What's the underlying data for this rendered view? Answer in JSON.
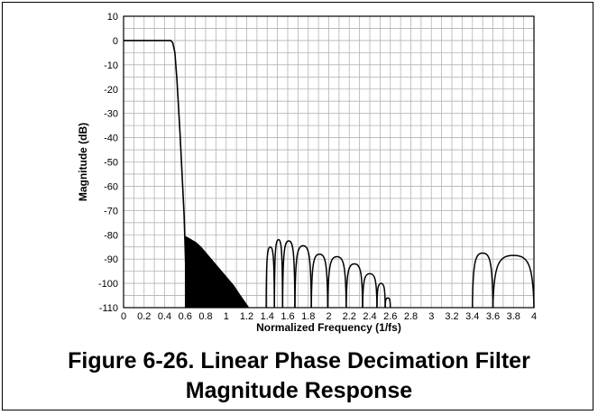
{
  "chart_data": {
    "type": "line",
    "xlabel": "Normalized Frequency (1/fs)",
    "ylabel": "Magnitude (dB)",
    "xlim": [
      0,
      4
    ],
    "ylim": [
      -110,
      10
    ],
    "x_ticks": [
      "0",
      "0.2",
      "0.4",
      "0.6",
      "0.8",
      "1",
      "1.2",
      "1.4",
      "1.6",
      "1.8",
      "2",
      "2.2",
      "2.4",
      "2.6",
      "2.8",
      "3",
      "3.2",
      "3.4",
      "3.6",
      "3.8",
      "4"
    ],
    "y_ticks": [
      "10",
      "0",
      "-10",
      "-20",
      "-30",
      "-40",
      "-50",
      "-60",
      "-70",
      "-80",
      "-90",
      "-100",
      "-110"
    ],
    "grid": true,
    "line_color": "#000000",
    "series": [
      {
        "passband": [
          [
            0,
            0
          ],
          [
            0.46,
            0
          ],
          [
            0.48,
            -1
          ],
          [
            0.5,
            -5
          ],
          [
            0.52,
            -16
          ],
          [
            0.55,
            -38
          ],
          [
            0.57,
            -55
          ],
          [
            0.59,
            -72
          ],
          [
            0.605,
            -92
          ],
          [
            0.61,
            -110
          ]
        ],
        "stopband_lobes": [
          [
            0.605,
            0.613,
            -80.8
          ],
          [
            0.613,
            0.621,
            -81.0
          ],
          [
            0.621,
            0.629,
            -81.2
          ],
          [
            0.629,
            0.637,
            -81.4
          ],
          [
            0.637,
            0.645,
            -81.6
          ],
          [
            0.645,
            0.653,
            -81.8
          ],
          [
            0.653,
            0.661,
            -82.0
          ],
          [
            0.661,
            0.669,
            -82.2
          ],
          [
            0.669,
            0.677,
            -82.4
          ],
          [
            0.677,
            0.685,
            -82.6
          ],
          [
            0.685,
            0.693,
            -82.8
          ],
          [
            0.693,
            0.701,
            -83.0
          ],
          [
            0.701,
            0.709,
            -83.2
          ],
          [
            0.709,
            0.717,
            -83.5
          ],
          [
            0.717,
            0.725,
            -83.8
          ],
          [
            0.725,
            0.733,
            -84.1
          ],
          [
            0.733,
            0.741,
            -84.4
          ],
          [
            0.741,
            0.749,
            -84.7
          ],
          [
            0.749,
            0.757,
            -85.0
          ],
          [
            0.757,
            0.765,
            -85.4
          ],
          [
            0.765,
            0.773,
            -85.8
          ],
          [
            0.773,
            0.781,
            -86.2
          ],
          [
            0.781,
            0.789,
            -86.6
          ],
          [
            0.789,
            0.797,
            -87.0
          ],
          [
            0.797,
            0.805,
            -87.4
          ],
          [
            0.805,
            0.813,
            -87.8
          ],
          [
            0.813,
            0.821,
            -88.2
          ],
          [
            0.821,
            0.829,
            -88.6
          ],
          [
            0.829,
            0.837,
            -89.0
          ],
          [
            0.837,
            0.845,
            -89.4
          ],
          [
            0.845,
            0.853,
            -89.8
          ],
          [
            0.853,
            0.861,
            -90.2
          ],
          [
            0.861,
            0.869,
            -90.6
          ],
          [
            0.869,
            0.877,
            -91.0
          ],
          [
            0.877,
            0.885,
            -91.4
          ],
          [
            0.885,
            0.893,
            -91.8
          ],
          [
            0.893,
            0.901,
            -92.2
          ],
          [
            0.901,
            0.909,
            -92.6
          ],
          [
            0.909,
            0.917,
            -93.0
          ],
          [
            0.917,
            0.925,
            -93.4
          ],
          [
            0.925,
            0.933,
            -93.8
          ],
          [
            0.933,
            0.941,
            -94.2
          ],
          [
            0.941,
            0.949,
            -94.6
          ],
          [
            0.949,
            0.957,
            -95.0
          ],
          [
            0.957,
            0.965,
            -95.4
          ],
          [
            0.965,
            0.973,
            -95.8
          ],
          [
            0.973,
            0.981,
            -96.2
          ],
          [
            0.981,
            0.989,
            -96.6
          ],
          [
            0.989,
            0.997,
            -97.0
          ],
          [
            0.997,
            1.005,
            -97.4
          ],
          [
            1.005,
            1.013,
            -97.8
          ],
          [
            1.013,
            1.021,
            -98.2
          ],
          [
            1.021,
            1.029,
            -98.6
          ],
          [
            1.029,
            1.037,
            -99.0
          ],
          [
            1.037,
            1.045,
            -99.4
          ],
          [
            1.045,
            1.053,
            -99.8
          ],
          [
            1.053,
            1.061,
            -100.2
          ],
          [
            1.061,
            1.069,
            -100.6
          ],
          [
            1.069,
            1.077,
            -101.0
          ],
          [
            1.077,
            1.085,
            -101.5
          ],
          [
            1.085,
            1.093,
            -102.0
          ],
          [
            1.093,
            1.101,
            -102.5
          ],
          [
            1.101,
            1.109,
            -103.0
          ],
          [
            1.109,
            1.117,
            -103.5
          ],
          [
            1.117,
            1.125,
            -104.0
          ],
          [
            1.125,
            1.133,
            -104.5
          ],
          [
            1.133,
            1.141,
            -105.0
          ],
          [
            1.141,
            1.149,
            -105.5
          ],
          [
            1.149,
            1.157,
            -106.0
          ],
          [
            1.157,
            1.165,
            -106.5
          ],
          [
            1.165,
            1.173,
            -107.0
          ],
          [
            1.173,
            1.181,
            -107.5
          ],
          [
            1.181,
            1.189,
            -108.0
          ],
          [
            1.189,
            1.197,
            -108.5
          ],
          [
            1.197,
            1.205,
            -109.0
          ],
          [
            1.205,
            1.213,
            -109.5
          ],
          [
            1.39,
            1.47,
            -85
          ],
          [
            1.47,
            1.55,
            -82
          ],
          [
            1.55,
            1.67,
            -82.5
          ],
          [
            1.67,
            1.83,
            -84.5
          ],
          [
            1.83,
            1.99,
            -88
          ],
          [
            1.99,
            2.17,
            -89
          ],
          [
            2.17,
            2.33,
            -92
          ],
          [
            2.33,
            2.47,
            -96
          ],
          [
            2.47,
            2.55,
            -100
          ],
          [
            2.55,
            2.6,
            -106
          ],
          [
            3.4,
            3.6,
            -87.5
          ],
          [
            3.6,
            4.0,
            -88.5
          ]
        ]
      }
    ]
  },
  "caption": {
    "line1": "Figure 6-26. Linear Phase Decimation Filter",
    "line2": "Magnitude Response"
  }
}
